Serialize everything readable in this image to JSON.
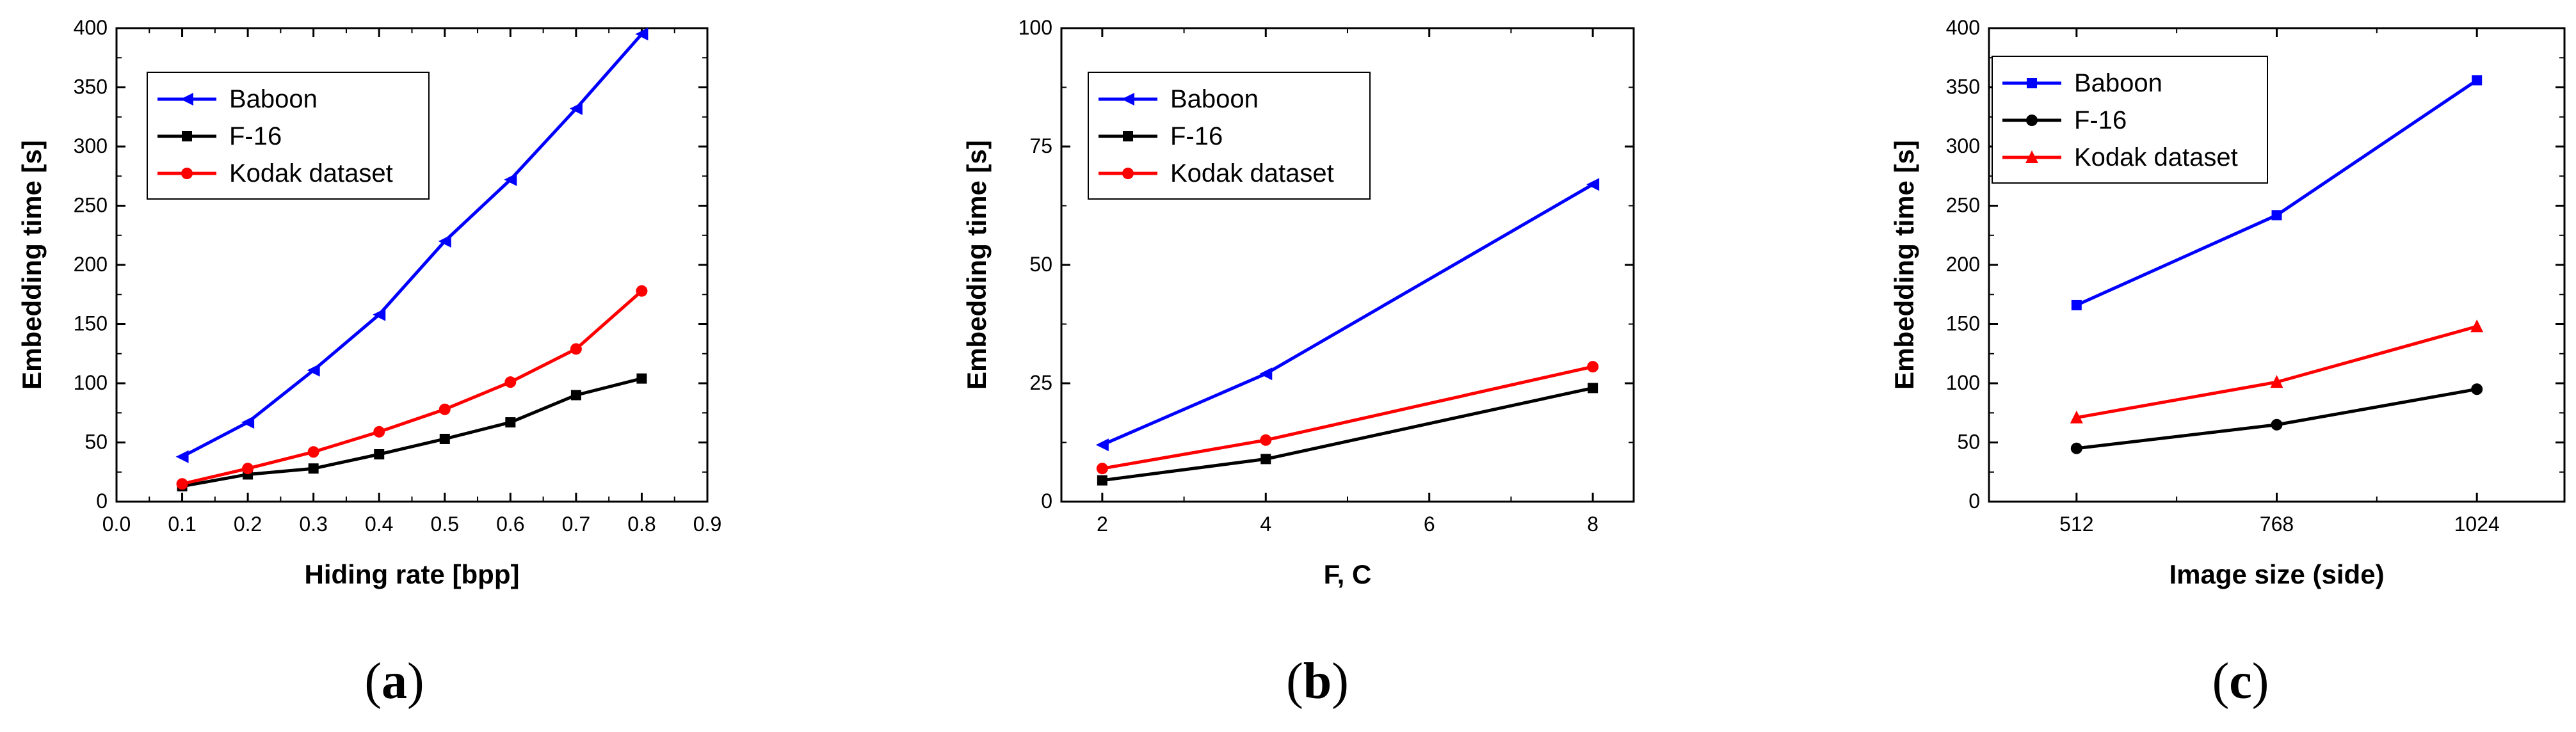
{
  "chart_data": [
    {
      "type": "line",
      "caption": "a",
      "xlabel": "Hiding rate [bpp]",
      "ylabel": "Embedding time [s]",
      "xlim": [
        0.0,
        0.9
      ],
      "ylim": [
        0,
        400
      ],
      "xticks": [
        0.0,
        0.1,
        0.2,
        0.3,
        0.4,
        0.5,
        0.6,
        0.7,
        0.8,
        0.9
      ],
      "xtick_labels": [
        "0.0",
        "0.1",
        "0.2",
        "0.3",
        "0.4",
        "0.5",
        "0.6",
        "0.7",
        "0.8",
        "0.9"
      ],
      "yticks": [
        0,
        50,
        100,
        150,
        200,
        250,
        300,
        350,
        400
      ],
      "ytick_labels": [
        "0",
        "50",
        "100",
        "150",
        "200",
        "250",
        "300",
        "350",
        "400"
      ],
      "legend_position": "top-left",
      "series": [
        {
          "name": "Baboon",
          "color": "#0000ff",
          "marker": "triangle-left",
          "x": [
            0.1,
            0.2,
            0.3,
            0.4,
            0.5,
            0.6,
            0.7,
            0.8
          ],
          "y": [
            38,
            67,
            111,
            158,
            220,
            272,
            332,
            395
          ]
        },
        {
          "name": "F-16",
          "color": "#000000",
          "marker": "square",
          "x": [
            0.1,
            0.2,
            0.3,
            0.4,
            0.5,
            0.6,
            0.7,
            0.8
          ],
          "y": [
            13,
            23,
            28,
            40,
            53,
            67,
            90,
            104
          ]
        },
        {
          "name": "Kodak dataset",
          "color": "#ff0000",
          "marker": "circle",
          "x": [
            0.1,
            0.2,
            0.3,
            0.4,
            0.5,
            0.6,
            0.7,
            0.8
          ],
          "y": [
            15,
            28,
            42,
            59,
            78,
            101,
            129,
            178
          ]
        }
      ]
    },
    {
      "type": "line",
      "caption": "b",
      "xlabel": "F, C",
      "ylabel": "Embedding time [s]",
      "xlim": [
        1.5,
        8.5
      ],
      "ylim": [
        0,
        100
      ],
      "xticks": [
        2,
        4,
        6,
        8
      ],
      "xtick_labels": [
        "2",
        "4",
        "6",
        "8"
      ],
      "yticks": [
        0,
        25,
        50,
        75,
        100
      ],
      "ytick_labels": [
        "0",
        "25",
        "50",
        "75",
        "100"
      ],
      "legend_position": "top-left",
      "series": [
        {
          "name": "Baboon",
          "color": "#0000ff",
          "marker": "triangle-left",
          "x": [
            2,
            4,
            8
          ],
          "y": [
            12,
            27,
            67
          ]
        },
        {
          "name": "F-16",
          "color": "#000000",
          "marker": "square",
          "x": [
            2,
            4,
            8
          ],
          "y": [
            4.5,
            9,
            24
          ]
        },
        {
          "name": "Kodak dataset",
          "color": "#ff0000",
          "marker": "circle",
          "x": [
            2,
            4,
            8
          ],
          "y": [
            7,
            13,
            28.5
          ]
        }
      ]
    },
    {
      "type": "line",
      "caption": "c",
      "xlabel": "Image size (side)",
      "ylabel": "Embedding time [s]",
      "xlim": [
        400,
        1136
      ],
      "ylim": [
        0,
        400
      ],
      "xticks": [
        512,
        768,
        1024
      ],
      "xtick_labels": [
        "512",
        "768",
        "1024"
      ],
      "yticks": [
        0,
        50,
        100,
        150,
        200,
        250,
        300,
        350,
        400
      ],
      "ytick_labels": [
        "0",
        "50",
        "100",
        "150",
        "200",
        "250",
        "300",
        "350",
        "400"
      ],
      "legend_position": "top-left",
      "series": [
        {
          "name": "Baboon",
          "color": "#0000ff",
          "marker": "square",
          "x": [
            512,
            768,
            1024
          ],
          "y": [
            166,
            242,
            356
          ]
        },
        {
          "name": "F-16",
          "color": "#000000",
          "marker": "circle",
          "x": [
            512,
            768,
            1024
          ],
          "y": [
            45,
            65,
            95
          ]
        },
        {
          "name": "Kodak dataset",
          "color": "#ff0000",
          "marker": "triangle-up",
          "x": [
            512,
            768,
            1024
          ],
          "y": [
            71,
            101,
            148
          ]
        }
      ]
    }
  ]
}
